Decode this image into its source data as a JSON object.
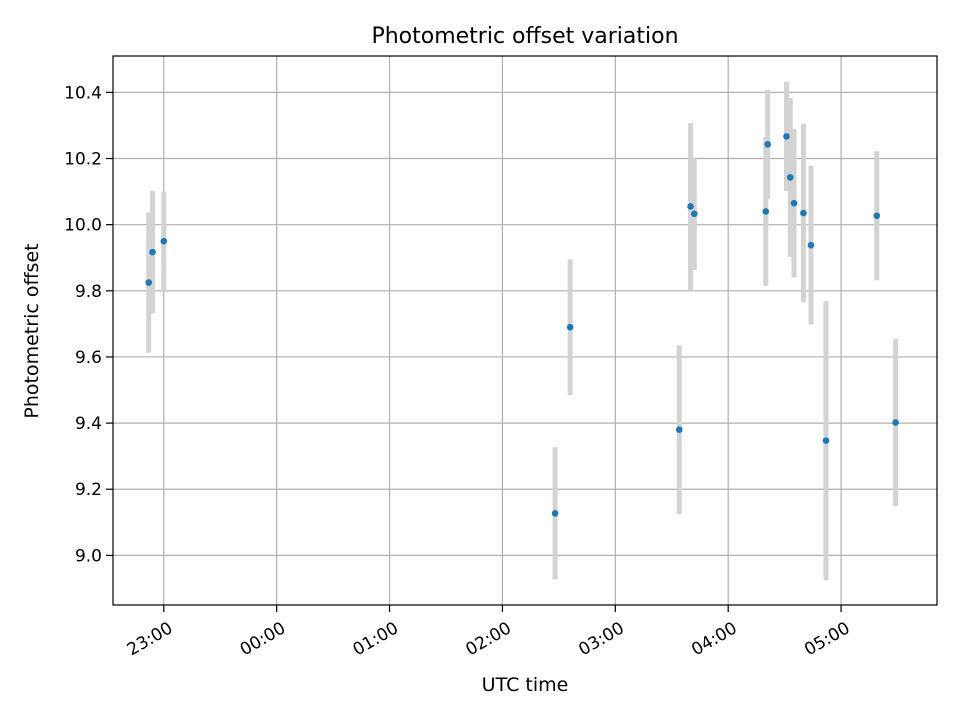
{
  "chart_data": {
    "type": "scatter",
    "title": "Photometric offset variation",
    "xlabel": "UTC time",
    "ylabel": "Photometric offset",
    "x_is_time": true,
    "xlim": [
      "22:33",
      "05:51"
    ],
    "ylim": [
      8.85,
      10.51
    ],
    "x_ticks": [
      "23:00",
      "00:00",
      "01:00",
      "02:00",
      "03:00",
      "04:00",
      "05:00"
    ],
    "y_ticks": [
      "9.0",
      "9.2",
      "9.4",
      "9.6",
      "9.8",
      "10.0",
      "10.2",
      "10.4"
    ],
    "grid": true,
    "point_color": "#1f77b4",
    "errorbar_color": "#d3d3d3",
    "points": [
      {
        "x": "22:52",
        "y": 9.825,
        "err": 0.212
      },
      {
        "x": "22:54",
        "y": 9.917,
        "err": 0.185
      },
      {
        "x": "23:00",
        "y": 9.95,
        "err": 0.15
      },
      {
        "x": "02:28",
        "y": 9.127,
        "err": 0.2
      },
      {
        "x": "02:36",
        "y": 9.69,
        "err": 0.205
      },
      {
        "x": "03:34",
        "y": 9.38,
        "err": 0.255
      },
      {
        "x": "03:40",
        "y": 10.055,
        "err": 0.252
      },
      {
        "x": "03:42",
        "y": 10.033,
        "err": 0.17
      },
      {
        "x": "04:20",
        "y": 10.04,
        "err": 0.225
      },
      {
        "x": "04:21",
        "y": 10.243,
        "err": 0.165
      },
      {
        "x": "04:31",
        "y": 10.267,
        "err": 0.165
      },
      {
        "x": "04:33",
        "y": 10.143,
        "err": 0.24
      },
      {
        "x": "04:35",
        "y": 10.065,
        "err": 0.225
      },
      {
        "x": "04:40",
        "y": 10.035,
        "err": 0.27
      },
      {
        "x": "04:44",
        "y": 9.938,
        "err": 0.24
      },
      {
        "x": "04:52",
        "y": 9.347,
        "err": 0.422
      },
      {
        "x": "05:19",
        "y": 10.027,
        "err": 0.195
      },
      {
        "x": "05:29",
        "y": 9.402,
        "err": 0.253
      }
    ]
  }
}
